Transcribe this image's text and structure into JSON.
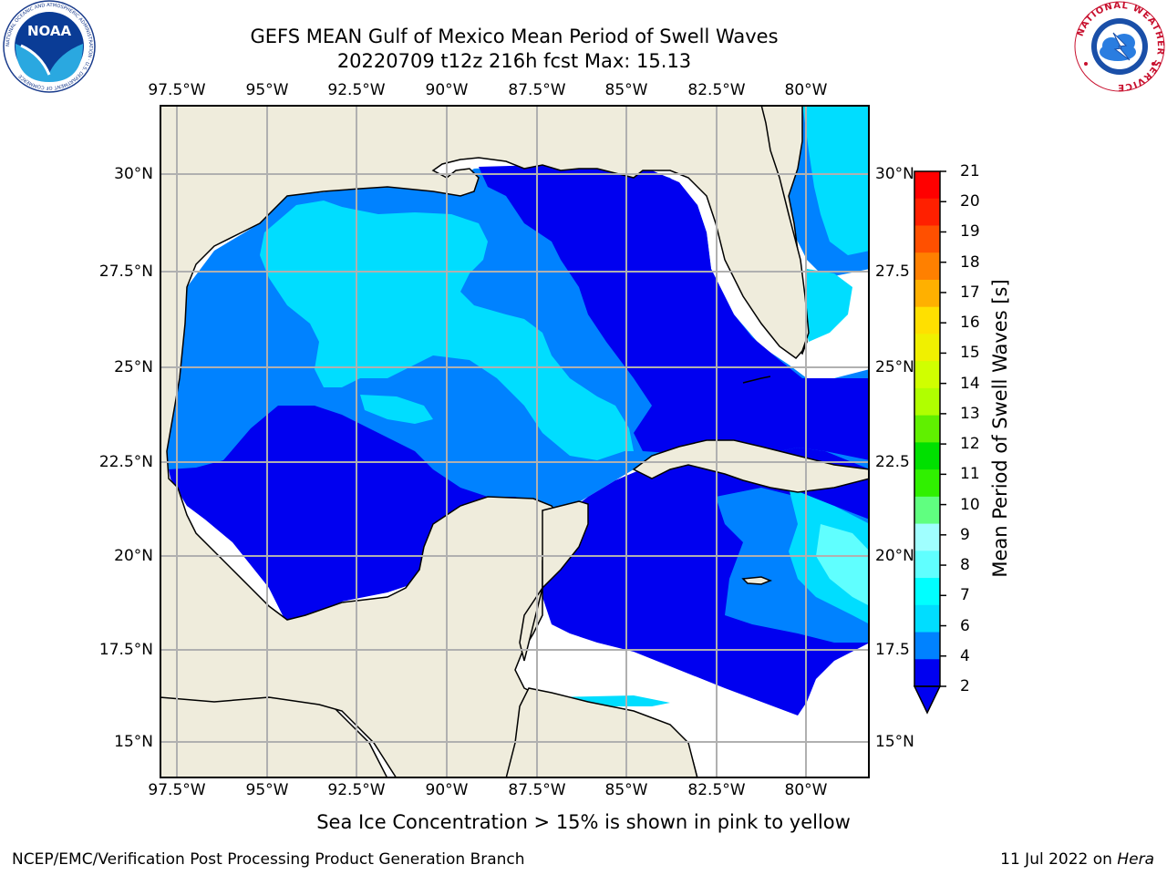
{
  "header": {
    "title_line1": "GEFS MEAN Gulf of Mexico Mean Period of Swell Waves",
    "title_line2": "20220709 t12z 216h fcst   Max: 15.13"
  },
  "map": {
    "lon_labels": [
      "97.5°W",
      "95°W",
      "92.5°W",
      "90°W",
      "87.5°W",
      "85°W",
      "82.5°W",
      "80°W"
    ],
    "lat_labels_left": [
      "30°N",
      "27.5°N",
      "25°N",
      "22.5°N",
      "20°N",
      "17.5°N",
      "15°N"
    ],
    "lat_labels_right": [
      "30°N",
      "27.5",
      "25°N",
      "22.5",
      "20°N",
      "17.5",
      "15°N"
    ],
    "land_color": "#efecdc",
    "grid_color": "#b0b0b0"
  },
  "colorbar": {
    "label": "Mean Period of Swell Waves [s]",
    "ticks": [
      "2",
      "4",
      "6",
      "7",
      "8",
      "9",
      "10",
      "11",
      "12",
      "13",
      "14",
      "15",
      "16",
      "17",
      "18",
      "19",
      "20",
      "21"
    ],
    "colors": [
      "#0000f0",
      "#0082ff",
      "#00ddff",
      "#00ffff",
      "#60ffff",
      "#a0ffff",
      "#60ff80",
      "#30f000",
      "#00e000",
      "#60f000",
      "#b0ff00",
      "#d0ff00",
      "#f0f000",
      "#ffe000",
      "#ffb000",
      "#ff8000",
      "#ff5000",
      "#ff2000",
      "#ff0000"
    ]
  },
  "footer": {
    "note": "Sea Ice Concentration > 15% is shown in pink to yellow",
    "credit": "NCEP/EMC/Verification Post Processing Product Generation Branch",
    "date_prefix": "11 Jul 2022 on ",
    "host": "Hera"
  },
  "logos": {
    "noaa_text": "NOAA",
    "noaa_ring": "NATIONAL OCEANIC AND ATMOSPHERIC ADMINISTRATION · U.S. DEPARTMENT OF COMMERCE",
    "nws_ring": "NATIONAL WEATHER SERVICE"
  }
}
